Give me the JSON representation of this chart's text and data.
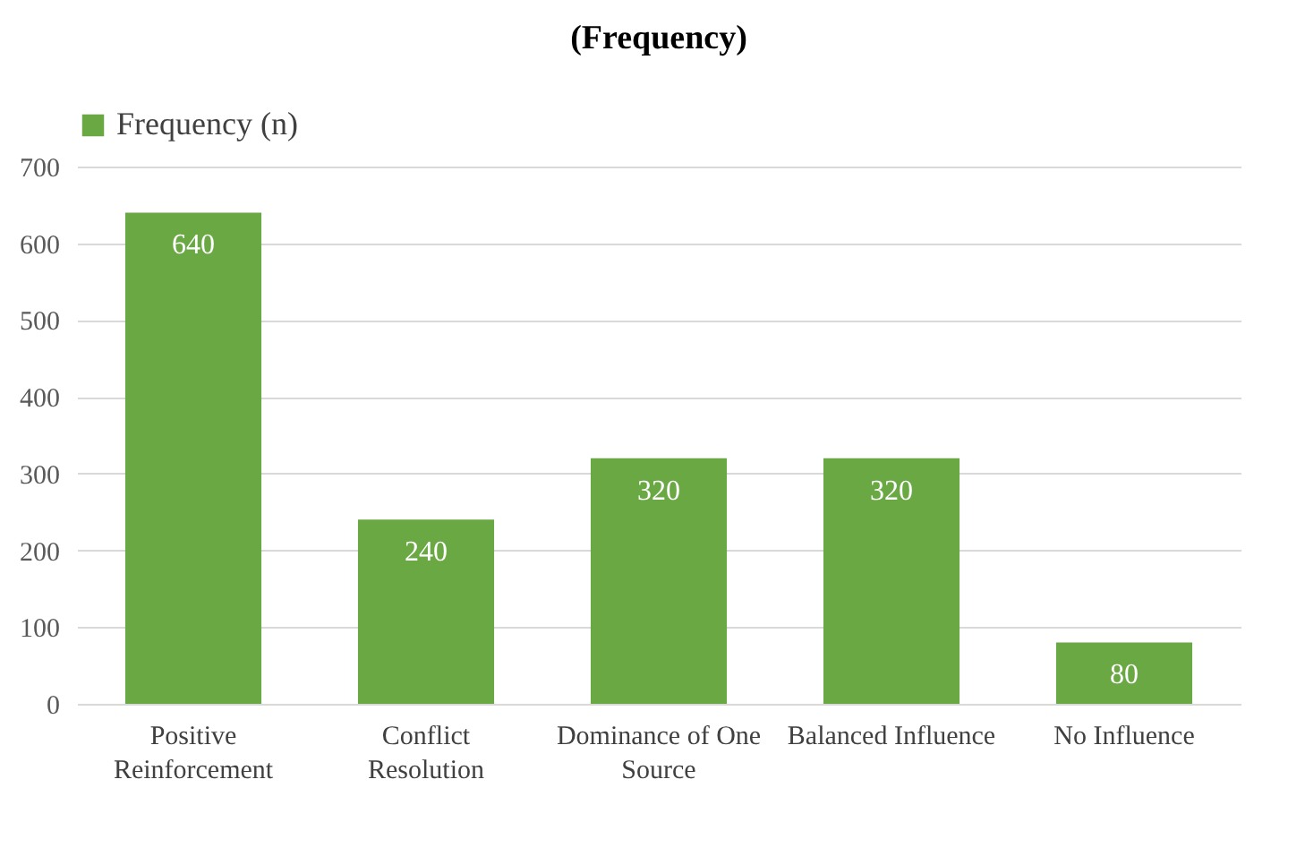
{
  "chart_data": {
    "type": "bar",
    "title": "(Frequency)",
    "categories": [
      "Positive Reinforcement",
      "Conflict Resolution",
      "Dominance of One Source",
      "Balanced Influence",
      "No Influence"
    ],
    "series": [
      {
        "name": "Frequency (n)",
        "color": "#6aa843",
        "values": [
          640,
          240,
          320,
          320,
          80
        ]
      }
    ],
    "ylim": [
      0,
      700
    ],
    "yticks": [
      0,
      100,
      200,
      300,
      400,
      500,
      600,
      700
    ],
    "grid": "y",
    "legend": "top",
    "data_labels": true
  }
}
